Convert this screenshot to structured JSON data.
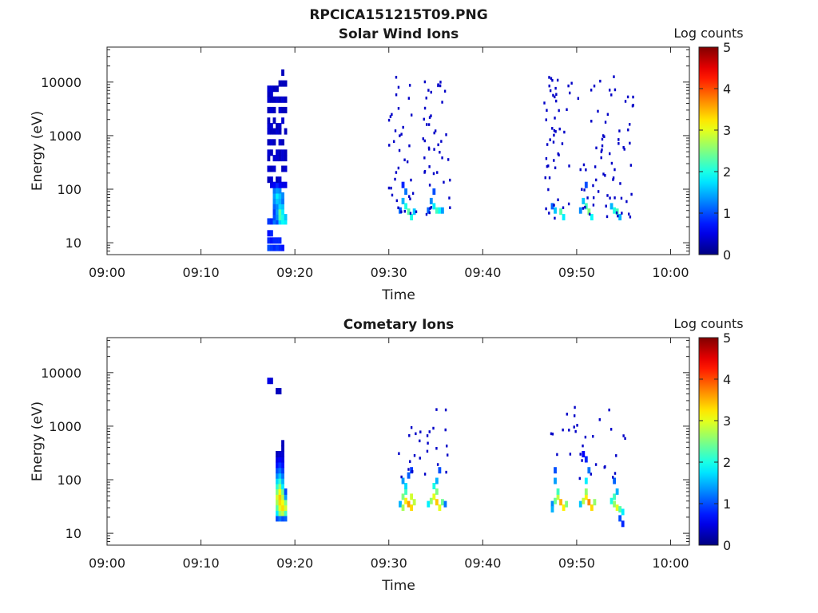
{
  "figure": {
    "title": "RPCICA151215T09.PNG"
  },
  "chart_data": [
    {
      "type": "heatmap",
      "title": "Solar Wind Ions",
      "xlabel": "Time",
      "ylabel": "Energy (eV)",
      "x_ticks": [
        "09:00",
        "09:10",
        "09:20",
        "09:30",
        "09:40",
        "09:50",
        "10:00"
      ],
      "x_range_minutes": [
        0,
        62
      ],
      "y_scale": "log",
      "y_ticks": [
        10,
        100,
        1000,
        10000
      ],
      "y_tick_labels": [
        "10",
        "100",
        "1000",
        "10000"
      ],
      "y_range": [
        6,
        45000
      ],
      "colorbar": {
        "label": "Log counts",
        "range": [
          0,
          5
        ],
        "ticks": [
          "0",
          "1",
          "2",
          "3",
          "4",
          "5"
        ],
        "colormap": "jet"
      },
      "cells": [
        [
          17.2,
          8,
          1.0
        ],
        [
          17.5,
          8,
          0.9
        ],
        [
          17.8,
          8,
          0.8
        ],
        [
          18.1,
          8,
          0.9
        ],
        [
          18.4,
          8,
          0.8
        ],
        [
          18.7,
          8,
          0.7
        ],
        [
          17.2,
          11,
          0.8
        ],
        [
          17.5,
          11,
          0.7
        ],
        [
          17.8,
          11,
          0.8
        ],
        [
          18.1,
          11,
          0.8
        ],
        [
          18.4,
          11,
          0.8
        ],
        [
          17.2,
          15,
          0.7
        ],
        [
          17.5,
          15,
          0.8
        ],
        [
          17.2,
          25,
          0.9
        ],
        [
          17.5,
          25,
          0.8
        ],
        [
          17.8,
          25,
          1.2
        ],
        [
          18.1,
          25,
          1.0
        ],
        [
          18.4,
          25,
          1.7
        ],
        [
          18.7,
          25,
          1.9
        ],
        [
          19.0,
          25,
          1.8
        ],
        [
          17.8,
          30,
          1.0
        ],
        [
          18.1,
          30,
          1.3
        ],
        [
          18.4,
          30,
          2.2
        ],
        [
          18.7,
          30,
          2.0
        ],
        [
          19.0,
          30,
          1.6
        ],
        [
          17.8,
          38,
          0.9
        ],
        [
          18.1,
          38,
          1.4
        ],
        [
          18.4,
          38,
          2.3
        ],
        [
          18.7,
          38,
          1.8
        ],
        [
          17.8,
          48,
          1.1
        ],
        [
          18.1,
          48,
          1.3
        ],
        [
          18.4,
          48,
          1.7
        ],
        [
          18.7,
          48,
          1.6
        ],
        [
          17.8,
          60,
          1.3
        ],
        [
          18.1,
          60,
          1.6
        ],
        [
          18.4,
          60,
          1.5
        ],
        [
          18.7,
          60,
          1.2
        ],
        [
          17.8,
          76,
          1.4
        ],
        [
          18.1,
          76,
          1.8
        ],
        [
          18.4,
          76,
          1.6
        ],
        [
          18.7,
          76,
          1.3
        ],
        [
          17.8,
          95,
          1.2
        ],
        [
          18.1,
          95,
          1.4
        ],
        [
          18.4,
          95,
          1.3
        ],
        [
          17.5,
          120,
          0.5
        ],
        [
          17.8,
          120,
          0.6
        ],
        [
          18.1,
          120,
          0.8
        ],
        [
          18.4,
          120,
          0.6
        ],
        [
          18.7,
          120,
          0.5
        ],
        [
          19.0,
          120,
          0.5
        ],
        [
          17.2,
          150,
          0.3
        ],
        [
          17.5,
          150,
          0.4
        ],
        [
          18.1,
          150,
          0.3
        ],
        [
          18.4,
          150,
          0.4
        ],
        [
          17.2,
          240,
          0.4
        ],
        [
          17.5,
          240,
          0.3
        ],
        [
          17.8,
          240,
          0.4
        ],
        [
          18.7,
          240,
          0.3
        ],
        [
          19.0,
          240,
          0.4
        ],
        [
          17.2,
          380,
          0.3
        ],
        [
          17.8,
          380,
          0.4
        ],
        [
          18.1,
          380,
          0.4
        ],
        [
          18.4,
          380,
          0.3
        ],
        [
          18.7,
          380,
          0.4
        ],
        [
          19.0,
          380,
          0.3
        ],
        [
          17.2,
          480,
          0.4
        ],
        [
          17.5,
          480,
          0.3
        ],
        [
          18.1,
          480,
          0.4
        ],
        [
          18.4,
          480,
          0.3
        ],
        [
          18.7,
          480,
          0.4
        ],
        [
          19.0,
          480,
          0.3
        ],
        [
          17.2,
          750,
          0.3
        ],
        [
          17.5,
          750,
          0.4
        ],
        [
          17.8,
          750,
          0.3
        ],
        [
          18.4,
          750,
          0.4
        ],
        [
          18.7,
          750,
          0.3
        ],
        [
          17.2,
          1200,
          0.4
        ],
        [
          17.5,
          1200,
          0.3
        ],
        [
          17.8,
          1200,
          0.3
        ],
        [
          18.1,
          1200,
          0.4
        ],
        [
          18.4,
          1200,
          0.3
        ],
        [
          19.0,
          1200,
          0.3
        ],
        [
          17.2,
          1500,
          0.4
        ],
        [
          17.5,
          1500,
          0.4
        ],
        [
          18.1,
          1500,
          0.3
        ],
        [
          18.4,
          1500,
          0.4
        ],
        [
          17.2,
          1900,
          0.3
        ],
        [
          17.8,
          1900,
          0.3
        ],
        [
          18.7,
          1900,
          0.4
        ],
        [
          17.2,
          3000,
          0.3
        ],
        [
          17.5,
          3000,
          0.4
        ],
        [
          17.8,
          3000,
          0.3
        ],
        [
          18.4,
          3000,
          0.4
        ],
        [
          18.7,
          3000,
          0.3
        ],
        [
          19.0,
          3000,
          0.3
        ],
        [
          17.2,
          4700,
          0.4
        ],
        [
          17.5,
          4700,
          0.3
        ],
        [
          17.8,
          4700,
          0.3
        ],
        [
          18.1,
          4700,
          0.4
        ],
        [
          18.4,
          4700,
          0.3
        ],
        [
          18.7,
          4700,
          0.4
        ],
        [
          19.0,
          4700,
          0.3
        ],
        [
          17.2,
          6000,
          0.3
        ],
        [
          17.5,
          6000,
          0.4
        ],
        [
          17.2,
          7500,
          0.4
        ],
        [
          17.5,
          7500,
          0.4
        ],
        [
          17.8,
          7500,
          0.3
        ],
        [
          18.1,
          7500,
          0.3
        ],
        [
          18.4,
          9400,
          0.3
        ],
        [
          18.7,
          9400,
          0.3
        ],
        [
          19.0,
          9400,
          0.3
        ],
        [
          18.7,
          15000,
          0.3
        ],
        [
          31.5,
          60,
          1.5
        ],
        [
          31.8,
          48,
          2.0
        ],
        [
          32.1,
          38,
          2.3
        ],
        [
          32.4,
          30,
          2.0
        ],
        [
          32.7,
          38,
          1.6
        ],
        [
          31.2,
          40,
          1.1
        ],
        [
          31.5,
          120,
          0.8
        ],
        [
          31.8,
          90,
          1.2
        ],
        [
          34.5,
          60,
          1.3
        ],
        [
          34.8,
          48,
          1.8
        ],
        [
          35.1,
          40,
          2.2
        ],
        [
          35.4,
          40,
          1.9
        ],
        [
          35.7,
          40,
          1.4
        ],
        [
          34.2,
          40,
          1.1
        ],
        [
          34.8,
          90,
          1.0
        ],
        [
          47.7,
          40,
          1.6
        ],
        [
          48.3,
          38,
          2.3
        ],
        [
          48.6,
          30,
          1.8
        ],
        [
          47.4,
          48,
          1.1
        ],
        [
          50.7,
          60,
          1.6
        ],
        [
          51.0,
          48,
          2.2
        ],
        [
          51.3,
          38,
          2.5
        ],
        [
          51.6,
          30,
          1.9
        ],
        [
          50.4,
          40,
          1.3
        ],
        [
          51.0,
          120,
          1.0
        ],
        [
          53.7,
          48,
          1.5
        ],
        [
          54.0,
          40,
          2.0
        ],
        [
          54.3,
          38,
          2.2
        ],
        [
          54.6,
          30,
          1.5
        ]
      ],
      "scatter_groups": [
        {
          "x_range": [
            29.9,
            33.0
          ],
          "count": 36,
          "value": 0.35,
          "seed": 11
        },
        {
          "x_range": [
            33.6,
            36.5
          ],
          "count": 44,
          "value": 0.35,
          "seed": 23
        },
        {
          "x_range": [
            46.5,
            50.0
          ],
          "count": 48,
          "value": 0.35,
          "seed": 37
        },
        {
          "x_range": [
            50.0,
            56.0
          ],
          "count": 70,
          "value": 0.35,
          "seed": 51
        }
      ]
    },
    {
      "type": "heatmap",
      "title": "Cometary Ions",
      "xlabel": "Time",
      "ylabel": "Energy (eV)",
      "x_ticks": [
        "09:00",
        "09:10",
        "09:20",
        "09:30",
        "09:40",
        "09:50",
        "10:00"
      ],
      "x_range_minutes": [
        0,
        62
      ],
      "y_scale": "log",
      "y_ticks": [
        10,
        100,
        1000,
        10000
      ],
      "y_tick_labels": [
        "10",
        "100",
        "1000",
        "10000"
      ],
      "y_range": [
        6,
        45000
      ],
      "colorbar": {
        "label": "Log counts",
        "range": [
          0,
          5
        ],
        "ticks": [
          "0",
          "1",
          "2",
          "3",
          "4",
          "5"
        ],
        "colormap": "jet"
      },
      "cells": [
        [
          18.1,
          19,
          1.0
        ],
        [
          18.4,
          19,
          1.2
        ],
        [
          18.7,
          19,
          1.0
        ],
        [
          19.0,
          19,
          1.1
        ],
        [
          18.1,
          24,
          1.8
        ],
        [
          18.4,
          24,
          2.6
        ],
        [
          18.7,
          24,
          2.8
        ],
        [
          19.0,
          24,
          2.2
        ],
        [
          18.1,
          30,
          2.3
        ],
        [
          18.4,
          30,
          3.0
        ],
        [
          18.7,
          30,
          3.3
        ],
        [
          19.0,
          30,
          2.9
        ],
        [
          18.1,
          38,
          2.7
        ],
        [
          18.4,
          38,
          3.3
        ],
        [
          18.7,
          38,
          3.1
        ],
        [
          19.0,
          38,
          2.5
        ],
        [
          18.1,
          48,
          2.9
        ],
        [
          18.4,
          48,
          3.4
        ],
        [
          18.7,
          48,
          2.8
        ],
        [
          19.0,
          48,
          1.4
        ],
        [
          18.1,
          60,
          2.5
        ],
        [
          18.4,
          60,
          3.1
        ],
        [
          18.7,
          60,
          2.4
        ],
        [
          19.0,
          60,
          1.0
        ],
        [
          18.1,
          76,
          2.1
        ],
        [
          18.4,
          76,
          2.6
        ],
        [
          18.7,
          76,
          1.8
        ],
        [
          18.1,
          95,
          1.7
        ],
        [
          18.4,
          95,
          2.1
        ],
        [
          18.7,
          95,
          1.5
        ],
        [
          18.1,
          120,
          1.3
        ],
        [
          18.4,
          120,
          1.6
        ],
        [
          18.7,
          120,
          1.2
        ],
        [
          18.1,
          150,
          1.0
        ],
        [
          18.4,
          150,
          1.2
        ],
        [
          18.7,
          150,
          0.9
        ],
        [
          18.1,
          190,
          0.7
        ],
        [
          18.4,
          190,
          0.9
        ],
        [
          18.7,
          190,
          0.7
        ],
        [
          18.1,
          240,
          0.5
        ],
        [
          18.4,
          240,
          0.6
        ],
        [
          18.7,
          240,
          0.5
        ],
        [
          18.1,
          300,
          0.3
        ],
        [
          18.4,
          300,
          0.4
        ],
        [
          18.7,
          300,
          0.4
        ],
        [
          18.7,
          380,
          0.3
        ],
        [
          18.7,
          480,
          0.3
        ],
        [
          17.2,
          7000,
          0.5
        ],
        [
          17.5,
          7000,
          0.4
        ],
        [
          18.1,
          4500,
          0.3
        ],
        [
          18.4,
          4500,
          0.3
        ],
        [
          31.2,
          35,
          1.5
        ],
        [
          31.5,
          30,
          2.7
        ],
        [
          31.8,
          40,
          3.2
        ],
        [
          32.1,
          35,
          3.6
        ],
        [
          32.4,
          30,
          3.3
        ],
        [
          32.7,
          38,
          2.8
        ],
        [
          31.5,
          48,
          2.5
        ],
        [
          31.8,
          60,
          2.2
        ],
        [
          31.8,
          76,
          1.7
        ],
        [
          31.5,
          95,
          1.4
        ],
        [
          32.1,
          120,
          1.1
        ],
        [
          32.4,
          150,
          0.9
        ],
        [
          32.4,
          48,
          2.9
        ],
        [
          34.2,
          35,
          1.8
        ],
        [
          34.5,
          40,
          2.6
        ],
        [
          34.8,
          48,
          3.0
        ],
        [
          35.1,
          38,
          3.4
        ],
        [
          35.4,
          30,
          3.0
        ],
        [
          35.7,
          38,
          2.4
        ],
        [
          35.1,
          60,
          2.5
        ],
        [
          34.8,
          76,
          2.0
        ],
        [
          35.1,
          95,
          1.5
        ],
        [
          35.4,
          150,
          1.0
        ],
        [
          36.0,
          35,
          1.2
        ],
        [
          47.4,
          35,
          1.3
        ],
        [
          47.7,
          40,
          2.4
        ],
        [
          48.0,
          48,
          2.8
        ],
        [
          48.3,
          38,
          3.5
        ],
        [
          48.6,
          30,
          3.2
        ],
        [
          48.9,
          35,
          2.5
        ],
        [
          48.0,
          60,
          2.2
        ],
        [
          47.7,
          95,
          1.4
        ],
        [
          47.7,
          150,
          1.0
        ],
        [
          47.4,
          28,
          1.5
        ],
        [
          50.4,
          35,
          1.6
        ],
        [
          50.7,
          40,
          2.8
        ],
        [
          51.0,
          48,
          3.2
        ],
        [
          51.3,
          38,
          3.7
        ],
        [
          51.6,
          30,
          3.3
        ],
        [
          51.9,
          38,
          2.6
        ],
        [
          51.0,
          60,
          2.6
        ],
        [
          51.0,
          95,
          1.8
        ],
        [
          51.3,
          150,
          1.2
        ],
        [
          51.0,
          240,
          0.8
        ],
        [
          50.7,
          300,
          0.6
        ],
        [
          53.7,
          40,
          2.0
        ],
        [
          54.0,
          35,
          2.6
        ],
        [
          54.3,
          30,
          3.0
        ],
        [
          54.6,
          28,
          2.3
        ],
        [
          54.9,
          25,
          1.8
        ],
        [
          54.0,
          48,
          2.2
        ],
        [
          54.3,
          60,
          1.5
        ],
        [
          54.0,
          95,
          1.1
        ],
        [
          54.6,
          19,
          1.0
        ],
        [
          54.9,
          15,
          0.8
        ]
      ],
      "scatter_groups": [
        {
          "x_range": [
            31.0,
            36.3
          ],
          "count": 26,
          "value": 0.35,
          "seed": 71,
          "y_log_range": [
            2.0,
            3.35
          ]
        },
        {
          "x_range": [
            47.0,
            55.5
          ],
          "count": 30,
          "value": 0.35,
          "seed": 89,
          "y_log_range": [
            2.0,
            3.35
          ]
        }
      ]
    }
  ]
}
